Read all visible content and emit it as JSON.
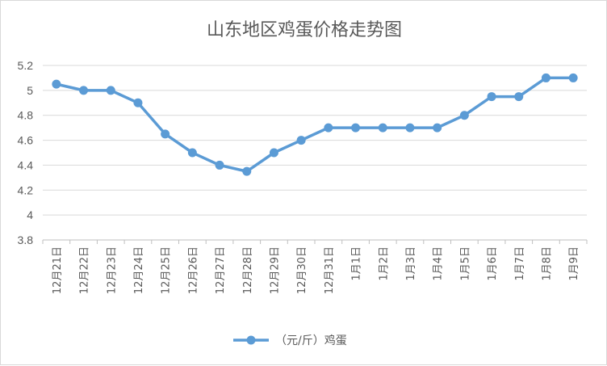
{
  "chart_data": {
    "type": "line",
    "title": "山东地区鸡蛋价格走势图",
    "xlabel": "",
    "ylabel": "",
    "categories": [
      "12月21日",
      "12月22日",
      "12月23日",
      "12月24日",
      "12月25日",
      "12月26日",
      "12月27日",
      "12月28日",
      "12月29日",
      "12月30日",
      "12月31日",
      "1月1日",
      "1月2日",
      "1月3日",
      "1月4日",
      "1月5日",
      "1月6日",
      "1月7日",
      "1月8日",
      "1月9日"
    ],
    "series": [
      {
        "name": "（元/斤）鸡蛋",
        "values": [
          5.05,
          5.0,
          5.0,
          4.9,
          4.65,
          4.5,
          4.4,
          4.35,
          4.5,
          4.6,
          4.7,
          4.7,
          4.7,
          4.7,
          4.7,
          4.8,
          4.95,
          4.95,
          5.1,
          5.1
        ],
        "color": "#5b9bd5"
      }
    ],
    "ylim": [
      3.8,
      5.2
    ],
    "yticks": [
      "3.8",
      "4",
      "4.2",
      "4.4",
      "4.6",
      "4.8",
      "5",
      "5.2"
    ],
    "grid": true,
    "legend_position": "bottom"
  }
}
